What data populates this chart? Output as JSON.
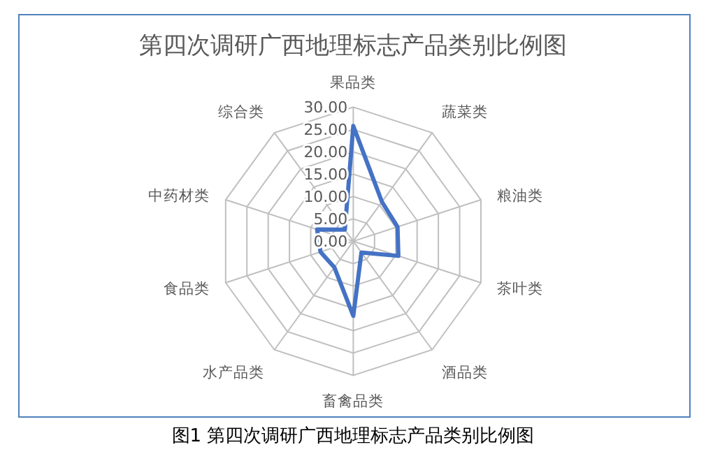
{
  "chart_data": {
    "type": "radar",
    "title": "第四次调研广西地理标志产品类别比例图",
    "categories": [
      "果品类",
      "蔬菜类",
      "粮油类",
      "茶叶类",
      "酒品类",
      "畜禽品类",
      "水产品类",
      "食品类",
      "中药材类",
      "综合类"
    ],
    "series": [
      {
        "color": "#4472c4",
        "values": [
          25.8,
          10.9,
          10.4,
          10.6,
          3.1,
          16.7,
          7.2,
          7.7,
          8.5,
          3.2
        ]
      }
    ],
    "ylim": [
      0,
      30
    ],
    "yticks": [
      {
        "value": 0,
        "label": "0.00"
      },
      {
        "value": 5,
        "label": "5.00"
      },
      {
        "value": 10,
        "label": "10.00"
      },
      {
        "value": 15,
        "label": "15.00"
      },
      {
        "value": 20,
        "label": "20.00"
      },
      {
        "value": 25,
        "label": "25.00"
      },
      {
        "value": 30,
        "label": "30.00"
      }
    ],
    "grid": true,
    "marker": "none",
    "line_style": "solid",
    "annotations": [
      "图1  第四次调研广西地理标志产品类别比例图"
    ]
  }
}
